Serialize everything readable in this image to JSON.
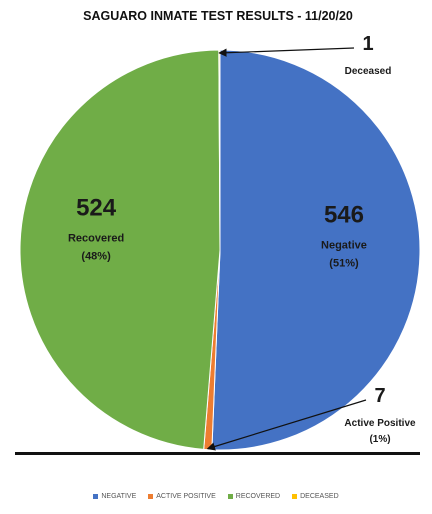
{
  "chart_data": {
    "type": "pie",
    "title": "SAGUARO INMATE TEST RESULTS - 11/20/20",
    "slices": [
      {
        "name": "NEGATIVE",
        "value": 546,
        "label": "Negative",
        "pct_label": "(51%)",
        "color": "#4472C4"
      },
      {
        "name": "ACTIVE POSITIVE",
        "value": 7,
        "label": "Active Positive",
        "pct_label": "(1%)",
        "color": "#ED7D31"
      },
      {
        "name": "RECOVERED",
        "value": 524,
        "label": "Recovered",
        "pct_label": "(48%)",
        "color": "#70AD47"
      },
      {
        "name": "DECEASED",
        "value": 1,
        "label": "Deceased",
        "pct_label": "",
        "color": "#FFC000"
      }
    ],
    "legend_position": "bottom"
  }
}
